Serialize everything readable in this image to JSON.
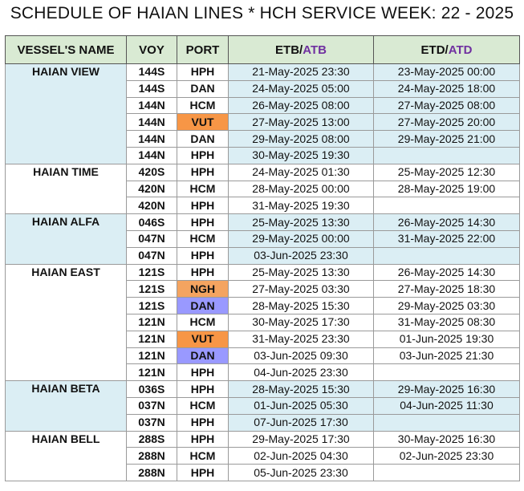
{
  "title": "SCHEDULE OF HAIAN LINES * HCH SERVICE WEEK: 22 - 2025",
  "headers": {
    "vessel": "VESSEL'S NAME",
    "voy": "VOY",
    "port": "PORT",
    "etb": "ETB/",
    "atb": "ATB",
    "etd": "ETD/",
    "atd": "ATD"
  },
  "colors": {
    "header_bg": "#d9ead3",
    "group_blue_bg": "#dbeef4",
    "port_blue": "#9999ff",
    "port_orange": "#f79646",
    "port_orange_light": "#f4a460",
    "actual_text": "#7030a0"
  },
  "groups": [
    {
      "vessel": "HAIAN VIEW",
      "shade": "blue",
      "rows": [
        {
          "voy": "144S",
          "port": "HPH",
          "hl": "",
          "etb": "21-May-2025 23:30",
          "etd": "23-May-2025 00:00"
        },
        {
          "voy": "144S",
          "port": "DAN",
          "hl": "blue",
          "etb": "24-May-2025 05:00",
          "etd": "24-May-2025 18:00"
        },
        {
          "voy": "144N",
          "port": "HCM",
          "hl": "",
          "etb": "26-May-2025 08:00",
          "etd": "27-May-2025 08:00"
        },
        {
          "voy": "144N",
          "port": "VUT",
          "hl": "orange",
          "etb": "27-May-2025 13:00",
          "etd": "27-May-2025 20:00"
        },
        {
          "voy": "144N",
          "port": "DAN",
          "hl": "blue",
          "etb": "29-May-2025 08:00",
          "etd": "29-May-2025 21:00"
        },
        {
          "voy": "144N",
          "port": "HPH",
          "hl": "",
          "etb": "30-May-2025 19:30",
          "etd": ""
        }
      ]
    },
    {
      "vessel": "HAIAN TIME",
      "shade": "white",
      "rows": [
        {
          "voy": "420S",
          "port": "HPH",
          "hl": "",
          "etb": "24-May-2025 01:30",
          "etd": "25-May-2025 12:30"
        },
        {
          "voy": "420N",
          "port": "HCM",
          "hl": "",
          "etb": "28-May-2025 00:00",
          "etd": "28-May-2025 19:00"
        },
        {
          "voy": "420N",
          "port": "HPH",
          "hl": "",
          "etb": "31-May-2025 19:30",
          "etd": ""
        }
      ]
    },
    {
      "vessel": "HAIAN ALFA",
      "shade": "blue",
      "rows": [
        {
          "voy": "046S",
          "port": "HPH",
          "hl": "",
          "etb": "25-May-2025 13:30",
          "etd": "26-May-2025 14:30"
        },
        {
          "voy": "047N",
          "port": "HCM",
          "hl": "",
          "etb": "29-May-2025 00:00",
          "etd": "31-May-2025 22:00"
        },
        {
          "voy": "047N",
          "port": "HPH",
          "hl": "",
          "etb": "03-Jun-2025 23:30",
          "etd": ""
        }
      ]
    },
    {
      "vessel": "HAIAN EAST",
      "shade": "white",
      "rows": [
        {
          "voy": "121S",
          "port": "HPH",
          "hl": "",
          "etb": "25-May-2025 13:30",
          "etd": "26-May-2025 14:30"
        },
        {
          "voy": "121S",
          "port": "NGH",
          "hl": "orange-light",
          "etb": "27-May-2025 03:30",
          "etd": "27-May-2025 18:30"
        },
        {
          "voy": "121S",
          "port": "DAN",
          "hl": "blue",
          "etb": "28-May-2025 15:30",
          "etd": "29-May-2025 03:30"
        },
        {
          "voy": "121N",
          "port": "HCM",
          "hl": "",
          "etb": "30-May-2025 17:30",
          "etd": "31-May-2025 08:30"
        },
        {
          "voy": "121N",
          "port": "VUT",
          "hl": "orange",
          "etb": "31-May-2025 23:30",
          "etd": "01-Jun-2025 19:30"
        },
        {
          "voy": "121N",
          "port": "DAN",
          "hl": "blue",
          "etb": "03-Jun-2025 09:30",
          "etd": "03-Jun-2025 21:30"
        },
        {
          "voy": "121N",
          "port": "HPH",
          "hl": "",
          "etb": "04-Jun-2025 23:30",
          "etd": ""
        }
      ]
    },
    {
      "vessel": "HAIAN BETA",
      "shade": "blue",
      "rows": [
        {
          "voy": "036S",
          "port": "HPH",
          "hl": "",
          "etb": "28-May-2025 15:30",
          "etd": "29-May-2025 16:30"
        },
        {
          "voy": "037N",
          "port": "HCM",
          "hl": "",
          "etb": "01-Jun-2025 05:30",
          "etd": "04-Jun-2025 11:30"
        },
        {
          "voy": "037N",
          "port": "HPH",
          "hl": "",
          "etb": "07-Jun-2025 17:30",
          "etd": ""
        }
      ]
    },
    {
      "vessel": "HAIAN BELL",
      "shade": "white",
      "rows": [
        {
          "voy": "288S",
          "port": "HPH",
          "hl": "",
          "etb": "29-May-2025 17:30",
          "etd": "30-May-2025 16:30"
        },
        {
          "voy": "288N",
          "port": "HCM",
          "hl": "",
          "etb": "02-Jun-2025 04:30",
          "etd": "02-Jun-2025 23:30"
        },
        {
          "voy": "288N",
          "port": "HPH",
          "hl": "",
          "etb": "05-Jun-2025 23:30",
          "etd": ""
        }
      ]
    }
  ]
}
